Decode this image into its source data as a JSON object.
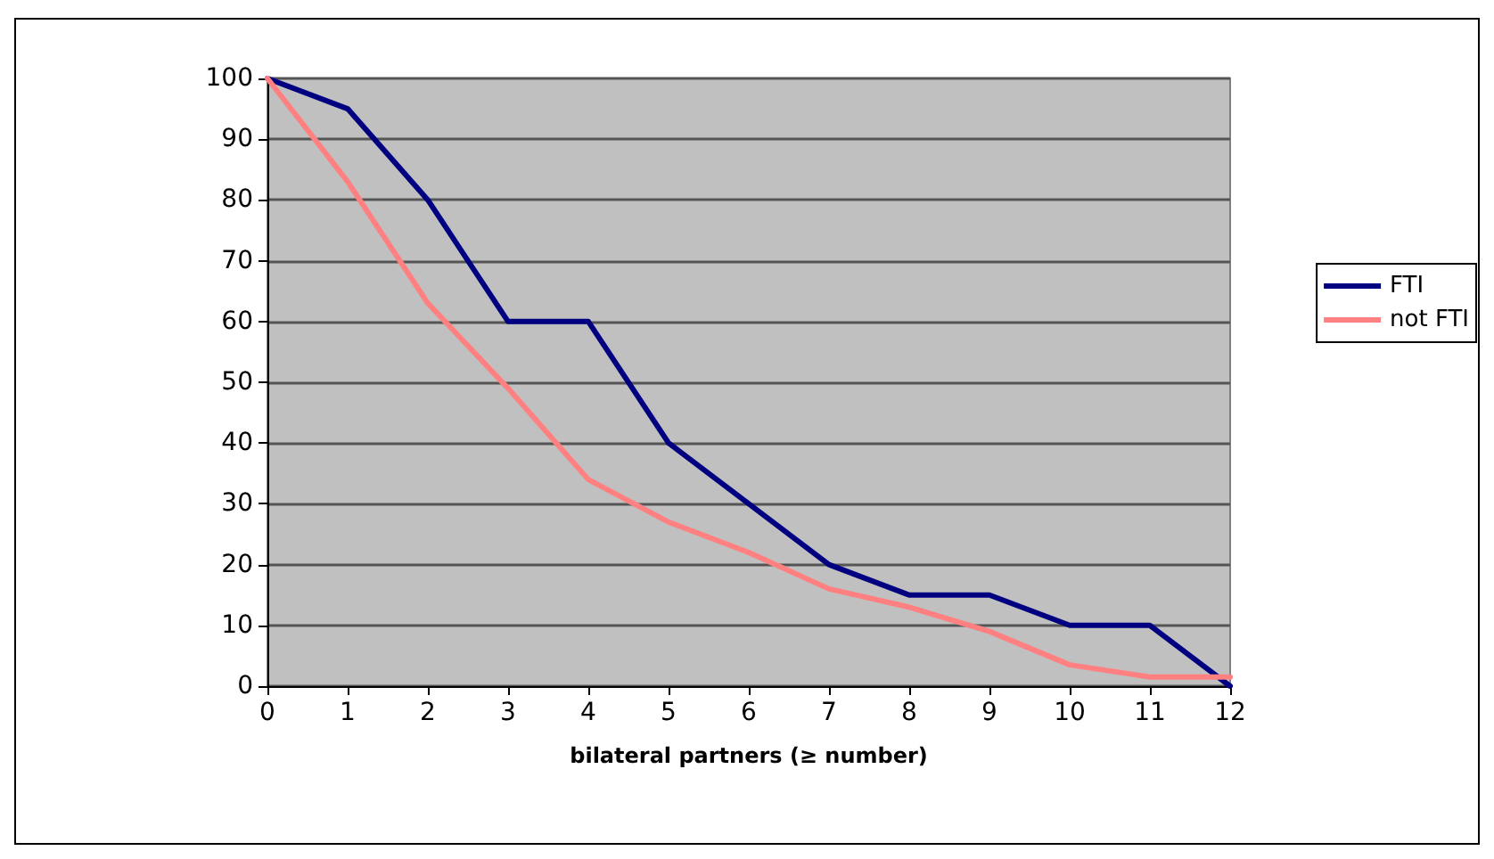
{
  "chart_data": {
    "type": "line",
    "xlabel": "bilateral partners (≥ number)",
    "x": [
      0,
      1,
      2,
      3,
      4,
      5,
      6,
      7,
      8,
      9,
      10,
      11,
      12
    ],
    "xlim": [
      0,
      12
    ],
    "xticks": [
      0,
      1,
      2,
      3,
      4,
      5,
      6,
      7,
      8,
      9,
      10,
      11,
      12
    ],
    "series": [
      {
        "name": "FTI",
        "color": "#000080",
        "values": [
          100,
          95,
          80,
          60,
          60,
          40,
          30,
          20,
          15,
          15,
          10,
          10,
          0
        ]
      },
      {
        "name": "not FTI",
        "color": "#ff8080",
        "values": [
          100,
          83,
          63,
          49,
          34,
          27,
          22,
          16,
          13,
          9,
          3.5,
          1.5,
          1.5
        ]
      }
    ],
    "ylim": [
      0,
      100
    ],
    "yticks": [
      0,
      10,
      20,
      30,
      40,
      50,
      60,
      70,
      80,
      90,
      100
    ],
    "grid": "y",
    "legend": "right",
    "marker": "none",
    "line_style": "solid"
  }
}
